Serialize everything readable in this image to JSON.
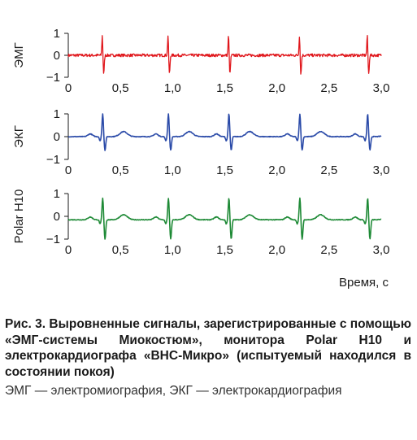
{
  "chart_data": [
    {
      "type": "line",
      "ylabel": "ЭМГ",
      "color": "#e0161b",
      "xlim": [
        0,
        3.0
      ],
      "ylim": [
        -1,
        1
      ],
      "x_ticks": [
        "0",
        "0,5",
        "1,0",
        "1,5",
        "2,0",
        "2,5",
        "3,0"
      ],
      "y_ticks": [
        "1",
        "0",
        "−1"
      ],
      "peak_times": [
        0.33,
        0.96,
        1.54,
        2.22,
        2.87
      ],
      "peak_max": 0.9,
      "peak_min": -0.85,
      "baseline": 0.0
    },
    {
      "type": "line",
      "ylabel": "ЭКГ",
      "color": "#2a4aa8",
      "xlim": [
        0,
        3.0
      ],
      "ylim": [
        -1,
        1
      ],
      "x_ticks": [
        "0",
        "0,5",
        "1,0",
        "1,5",
        "2,0",
        "2,5",
        "3,0"
      ],
      "y_ticks": [
        "1",
        "0",
        "−1"
      ],
      "peak_times": [
        0.33,
        0.96,
        1.54,
        2.22,
        2.87
      ],
      "peak_max": 1.0,
      "peak_min": -0.6,
      "baseline": 0.0
    },
    {
      "type": "line",
      "ylabel": "Polar H10",
      "color": "#1e8a36",
      "xlim": [
        0,
        3.0
      ],
      "ylim": [
        -1,
        1
      ],
      "x_ticks": [
        "0",
        "0,5",
        "1,0",
        "1,5",
        "2,0",
        "2,5",
        "3,0"
      ],
      "y_ticks": [
        "1",
        "0",
        "−1"
      ],
      "peak_times": [
        0.33,
        0.96,
        1.54,
        2.22,
        2.87
      ],
      "peak_max": 0.95,
      "peak_min": -0.85,
      "baseline": -0.15
    }
  ],
  "xlabel": "Время, с",
  "caption": {
    "main": "Рис. 3. Выровненные сигналы, зарегистрированные с помощью «ЭМГ-системы Миокостюм», монитора Polar H10 и электрокардиографа «ВНС-Микро» (испытуемый находился в состоянии покоя)",
    "note": "ЭМГ — электромиография, ЭКГ — электрокардиография"
  }
}
